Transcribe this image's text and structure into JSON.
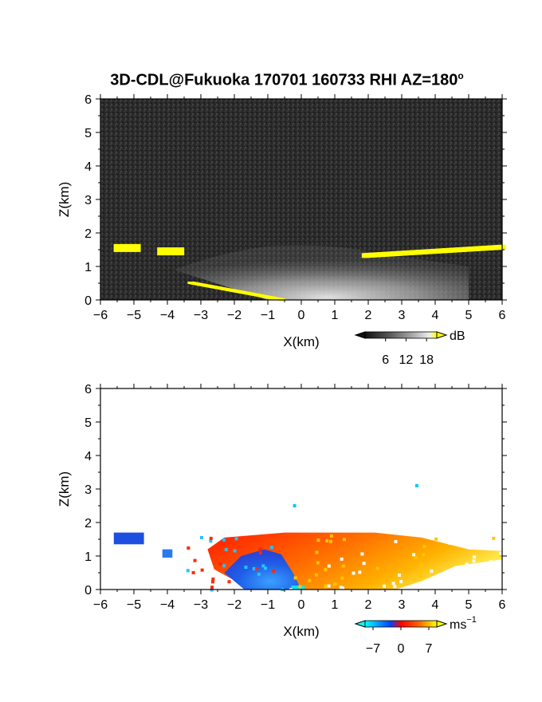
{
  "title": {
    "text": "3D-CDL@Fukuoka 170701 160733 RHI AZ=180",
    "degree_mark": "o"
  },
  "chart_data": [
    {
      "type": "heatmap",
      "panel": "reflectivity",
      "xlabel": "X(km)",
      "ylabel": "Z(km)",
      "xlim": [
        -6,
        6
      ],
      "ylim": [
        0,
        6
      ],
      "xticks": [
        "−6",
        "−5",
        "−4",
        "−3",
        "−2",
        "−1",
        "0",
        "1",
        "2",
        "3",
        "4",
        "5",
        "6"
      ],
      "yticks": [
        "0",
        "1",
        "2",
        "3",
        "4",
        "5",
        "6"
      ],
      "background": "#2b2b2b",
      "colorbar": {
        "unit": "dB",
        "tick_labels": [
          "6",
          "12",
          "18"
        ],
        "tick_values": [
          6,
          12,
          18
        ],
        "range": [
          0,
          21
        ],
        "colors": [
          "#111111",
          "#5a5a5a",
          "#a5a5a5",
          "#eeeeee",
          "#ffff00"
        ]
      },
      "features": [
        {
          "name": "echo-dome",
          "x_range": [
            -3.8,
            2.2
          ],
          "z_top": 1.6,
          "intensity": "grey-white"
        },
        {
          "name": "saturated-layer-right",
          "x_range": [
            1.9,
            6
          ],
          "z": [
            1.1,
            1.5
          ],
          "color": "#ffff00"
        },
        {
          "name": "saturated-patch-left",
          "x": -5.2,
          "z": 1.55,
          "color": "#ffff00"
        },
        {
          "name": "saturated-patch-mid",
          "x": -3.9,
          "z": 1.45,
          "color": "#ffff00"
        },
        {
          "name": "saturated-ground-clutter",
          "x_range": [
            -3.3,
            -0.6
          ],
          "z": [
            0.5,
            0.0
          ],
          "color": "#ffff00"
        }
      ]
    },
    {
      "type": "heatmap",
      "panel": "doppler-velocity",
      "xlabel": "X(km)",
      "ylabel": "Z(km)",
      "xlim": [
        -6,
        6
      ],
      "ylim": [
        0,
        6
      ],
      "xticks": [
        "−6",
        "−5",
        "−4",
        "−3",
        "−2",
        "−1",
        "0",
        "1",
        "2",
        "3",
        "4",
        "5",
        "6"
      ],
      "yticks": [
        "0",
        "1",
        "2",
        "3",
        "4",
        "5",
        "6"
      ],
      "background": "#ffffff",
      "colorbar": {
        "unit": "ms",
        "unit_exponent": "−1",
        "tick_labels": [
          "−7",
          "0",
          "7"
        ],
        "tick_values": [
          -7,
          0,
          7
        ],
        "range": [
          -9,
          9
        ],
        "colors": [
          "#00ffff",
          "#0044ff",
          "#ff0000",
          "#ff6600",
          "#ffff00"
        ]
      },
      "features": [
        {
          "name": "positive-core",
          "x_range": [
            -2.8,
            6
          ],
          "z_top": 1.7,
          "velocity": "0..7"
        },
        {
          "name": "negative-core",
          "x_range": [
            -2.3,
            -0.1
          ],
          "z": [
            0.0,
            1.2
          ],
          "velocity": "-7..0"
        },
        {
          "name": "negative-patch-left",
          "x": -5.2,
          "z": 1.5,
          "velocity": -5
        },
        {
          "name": "isolated-echo-1",
          "x": -0.2,
          "z": 2.5,
          "velocity": -7
        },
        {
          "name": "isolated-echo-2",
          "x": 3.45,
          "z": 3.1,
          "velocity": -7
        }
      ]
    }
  ]
}
